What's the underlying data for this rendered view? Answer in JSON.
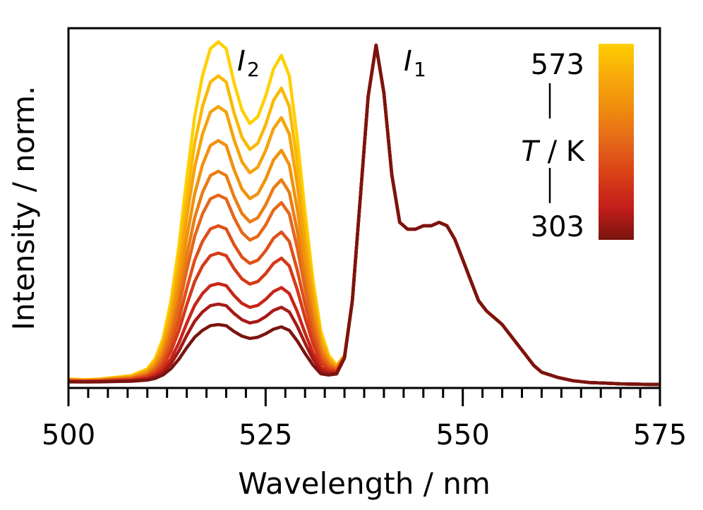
{
  "chart_data": {
    "type": "line",
    "title": "",
    "xlabel": "Wavelength / nm",
    "ylabel": "Intensity / norm.",
    "xlim": [
      500,
      575
    ],
    "ylim": [
      0,
      1.05
    ],
    "x_ticks": [
      500,
      525,
      550,
      575
    ],
    "x_tick_labels": [
      "500",
      "525",
      "550",
      "575"
    ],
    "x_minor_step": 5,
    "y_ticks_shown": false,
    "grid": false,
    "annotations": [
      {
        "base": "I",
        "sub": "2",
        "x": 523.5,
        "label_for": "I2 band (~519 and ~527 nm)"
      },
      {
        "base": "I",
        "sub": "1",
        "x": 542.5,
        "label_for": "I1 band (~539 nm)"
      }
    ],
    "colorbar": {
      "label_italic": "T",
      "label_rest": " / K",
      "max_label": "573",
      "min_label": "303",
      "max": 573,
      "min": 303,
      "colors": [
        "#ffd000",
        "#f7a90a",
        "#ee8c0e",
        "#e5671a",
        "#d94018",
        "#c41e1a",
        "#7a1410"
      ],
      "placement": "top-right"
    },
    "series_temperatures": [
      573,
      546,
      519,
      492,
      465,
      438,
      411,
      384,
      357,
      330,
      303
    ],
    "i2_scale": [
      1.0,
      0.9,
      0.81,
      0.71,
      0.62,
      0.55,
      0.46,
      0.38,
      0.29,
      0.23,
      0.17
    ],
    "base_profile_x": [
      500,
      502,
      504,
      506,
      508,
      510,
      511,
      512,
      513,
      514,
      515,
      516,
      517,
      518,
      519,
      520,
      521,
      522,
      523,
      524,
      525,
      526,
      527,
      528,
      529,
      530,
      531,
      532,
      533,
      534,
      535,
      536,
      537,
      538,
      539,
      540,
      541,
      542,
      543,
      544,
      545,
      546,
      547,
      548,
      549,
      550,
      551,
      552,
      553,
      554,
      555,
      556,
      557,
      558,
      559,
      560,
      562,
      564,
      566,
      568,
      570,
      572,
      575
    ],
    "i1_profile": [
      0.01,
      0.01,
      0.01,
      0.01,
      0.01,
      0.01,
      0.01,
      0.01,
      0.01,
      0.01,
      0.01,
      0.01,
      0.01,
      0.01,
      0.01,
      0.01,
      0.01,
      0.01,
      0.01,
      0.01,
      0.01,
      0.01,
      0.01,
      0.01,
      0.01,
      0.01,
      0.01,
      0.01,
      0.02,
      0.03,
      0.08,
      0.25,
      0.55,
      0.85,
      1.0,
      0.86,
      0.62,
      0.48,
      0.46,
      0.46,
      0.47,
      0.47,
      0.48,
      0.47,
      0.43,
      0.37,
      0.31,
      0.25,
      0.22,
      0.2,
      0.18,
      0.15,
      0.12,
      0.09,
      0.06,
      0.04,
      0.025,
      0.015,
      0.01,
      0.008,
      0.006,
      0.005,
      0.004
    ],
    "i2_profile": [
      0.01,
      0.008,
      0.01,
      0.015,
      0.02,
      0.04,
      0.07,
      0.13,
      0.24,
      0.4,
      0.6,
      0.78,
      0.9,
      0.98,
      1.0,
      0.98,
      0.88,
      0.8,
      0.76,
      0.78,
      0.84,
      0.92,
      0.96,
      0.9,
      0.72,
      0.5,
      0.3,
      0.15,
      0.07,
      0.03,
      0.01,
      0.0,
      0.0,
      0.0,
      0.0,
      0.0,
      0.0,
      0.0,
      0.0,
      0.0,
      0.0,
      0.0,
      0.0,
      0.0,
      0.0,
      0.0,
      0.0,
      0.0,
      0.0,
      0.0,
      0.0,
      0.0,
      0.0,
      0.0,
      0.0,
      0.0,
      0.0,
      0.0,
      0.0,
      0.0,
      0.0,
      0.0,
      0.0
    ]
  }
}
